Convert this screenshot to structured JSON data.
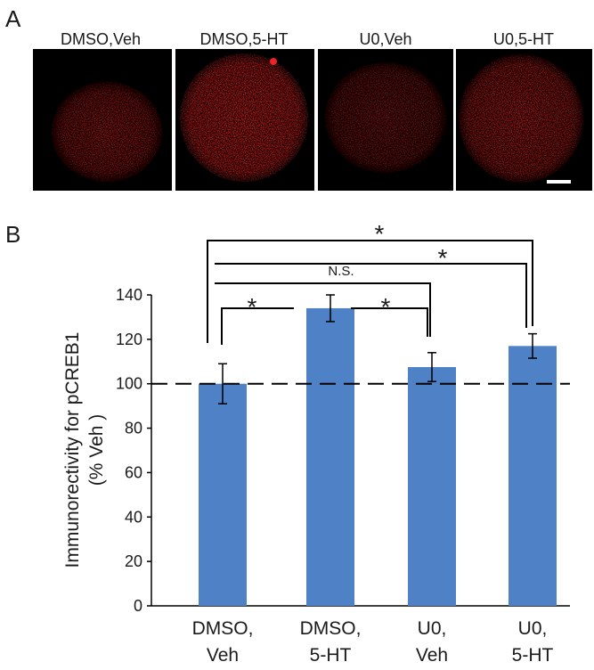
{
  "panel_labels": [
    "A",
    "B"
  ],
  "images": {
    "titles": [
      "DMSO,Veh",
      "DMSO,5-HT",
      "U0,Veh",
      "U0,5-HT"
    ]
  },
  "chart_data": {
    "type": "bar",
    "ylabel": [
      "Immunorectivity for pCREB1",
      "(% Veh )"
    ],
    "categories": [
      "DMSO,\nVeh",
      "DMSO,\n5-HT",
      "U0,\nVeh",
      "U0,\n5-HT"
    ],
    "values": [
      100,
      134,
      107.5,
      117
    ],
    "errors": [
      9,
      6,
      6.5,
      5.5
    ],
    "color": "#4f81c7",
    "reference_line": 100,
    "ylim": [
      0,
      140
    ],
    "yticks": [
      0,
      20,
      40,
      60,
      80,
      100,
      120,
      140
    ],
    "annotations": [
      "*",
      "*",
      "N.S.",
      "*",
      "*"
    ]
  }
}
